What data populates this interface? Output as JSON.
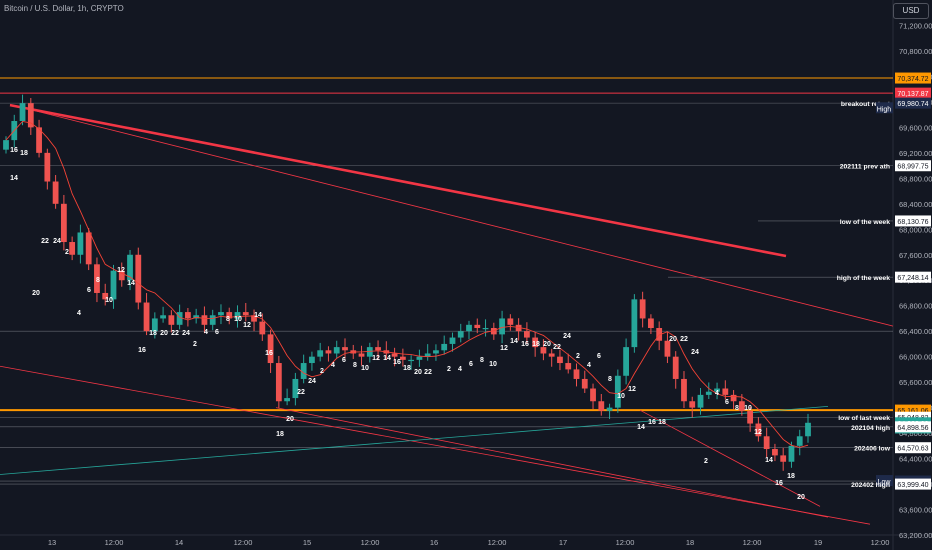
{
  "chart_title": "Bitcoin / U.S. Dollar, 1h, CRYPTO",
  "currency_button": "USD",
  "colors": {
    "background": "#131722",
    "bull": "#26a69a",
    "bear": "#ef5350",
    "trend_red": "#f23645",
    "orange_level": "#ff9800",
    "ma_line": "#f44336",
    "grid": "#2a2e39"
  },
  "chart_data": {
    "type": "candlestick",
    "y_axis": {
      "min": 63200,
      "max": 71600,
      "ticks": [
        "71,200.00",
        "70,800.00",
        "70,400.00",
        "70,000.00",
        "69,600.00",
        "69,200.00",
        "68,800.00",
        "68,400.00",
        "68,000.00",
        "67,600.00",
        "67,200.00",
        "66,800.00",
        "66,400.00",
        "66,000.00",
        "65,600.00",
        "65,200.00",
        "64,800.00",
        "64,400.00",
        "64,000.00",
        "63,600.00",
        "63,200.00"
      ]
    },
    "x_axis": {
      "ticks": [
        "13",
        "12:00",
        "14",
        "12:00",
        "15",
        "12:00",
        "16",
        "12:00",
        "17",
        "12:00",
        "18",
        "12:00",
        "19",
        "12:00"
      ]
    },
    "price_labels": [
      {
        "text": "70,374.72",
        "value": 70374.72,
        "kind": "orange"
      },
      {
        "text": "70,137.87",
        "value": 70137.87,
        "kind": "red"
      },
      {
        "text": "69,980.74",
        "value": 69980.74,
        "kind": "dark"
      },
      {
        "text": "68,997.75",
        "value": 68997.75,
        "kind": "white"
      },
      {
        "text": "68,130.76",
        "value": 68130.76,
        "kind": "white"
      },
      {
        "text": "67,248.14",
        "value": 67248.14,
        "kind": "white"
      },
      {
        "text": "65,161.06",
        "value": 65161.06,
        "kind": "orange"
      },
      {
        "text": "65,048.82",
        "value": 65048.82,
        "kind": "white"
      },
      {
        "text": "64,962.02",
        "value": 64962.02,
        "kind": "teal"
      },
      {
        "text": "03:47",
        "value": 64880,
        "kind": "teal"
      },
      {
        "text": "64,898.56",
        "value": 64898.56,
        "kind": "white"
      },
      {
        "text": "64,570.63",
        "value": 64570.63,
        "kind": "white"
      },
      {
        "text": "64,047.41",
        "value": 64047.41,
        "kind": "dark"
      },
      {
        "text": "63,999.40",
        "value": 63999.4,
        "kind": "white"
      }
    ],
    "level_labels": [
      {
        "text": "breakout retest",
        "value": 69980.74
      },
      {
        "text": "High",
        "value": 69900
      },
      {
        "text": "202111 prev ath",
        "value": 68997.75
      },
      {
        "text": "low of the week",
        "value": 68130.76
      },
      {
        "text": "high of the week",
        "value": 67248.14
      },
      {
        "text": "low of last week",
        "value": 65048.82
      },
      {
        "text": "202104 high",
        "value": 64898.56
      },
      {
        "text": "202406 low",
        "value": 64570.63
      },
      {
        "text": "Low",
        "value": 64047.41
      },
      {
        "text": "202402 high",
        "value": 63999.4
      }
    ],
    "horizontal_lines": [
      {
        "value": 70374.72,
        "color": "orange"
      },
      {
        "value": 70137.87,
        "color": "red"
      },
      {
        "value": 69980.74,
        "color": "grey"
      },
      {
        "value": 68997.75,
        "color": "grey"
      },
      {
        "value": 68130.76,
        "color": "grey"
      },
      {
        "value": 67248.14,
        "color": "grey"
      },
      {
        "value": 66400,
        "color": "grey"
      },
      {
        "value": 65161.06,
        "color": "orange"
      },
      {
        "value": 65048.82,
        "color": "grey"
      },
      {
        "value": 64898.56,
        "color": "grey"
      },
      {
        "value": 64570.63,
        "color": "grey"
      },
      {
        "value": 64047.41,
        "color": "grey"
      },
      {
        "value": 63999.4,
        "color": "grey"
      }
    ],
    "candle_path": [
      69400,
      69700,
      69980,
      69600,
      69200,
      68750,
      68400,
      67800,
      67600,
      67950,
      67450,
      67000,
      66900,
      67350,
      67200,
      67600,
      66850,
      66400,
      66600,
      66650,
      66500,
      66700,
      66600,
      66650,
      66500,
      66650,
      66700,
      66600,
      66700,
      66650,
      66550,
      66350,
      65900,
      65300,
      65350,
      65650,
      65900,
      66000,
      66100,
      66050,
      66150,
      66100,
      66050,
      66000,
      66150,
      66100,
      66050,
      66000,
      65950,
      65950,
      66000,
      66050,
      66100,
      66200,
      66300,
      66400,
      66500,
      66450,
      66450,
      66350,
      66600,
      66500,
      66400,
      66300,
      66150,
      66050,
      66000,
      65900,
      65800,
      65650,
      65500,
      65300,
      65150,
      65200,
      65700,
      66150,
      66900,
      66600,
      66450,
      66250,
      66000,
      65650,
      65300,
      65200,
      65400,
      65450,
      65500,
      65400,
      65300,
      65150,
      64950,
      64750,
      64550,
      64450,
      64350,
      64600,
      64750,
      64962
    ]
  }
}
